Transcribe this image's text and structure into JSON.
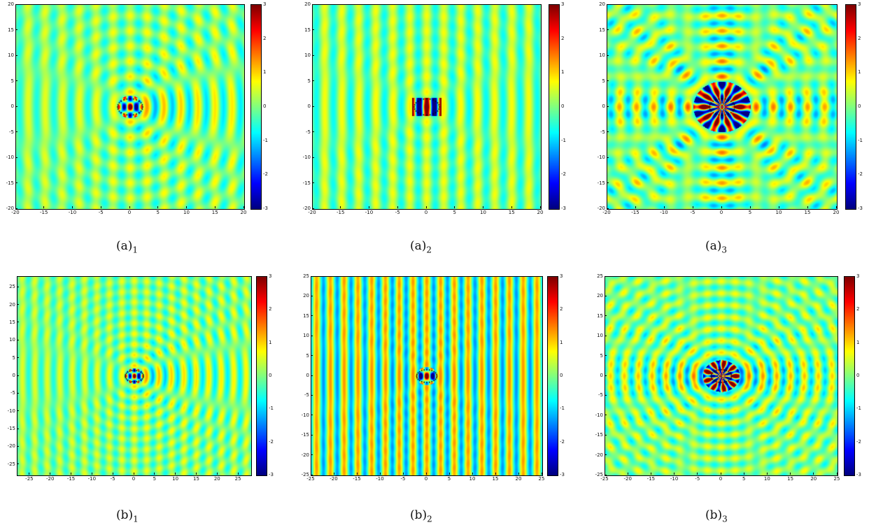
{
  "chart_data": [
    {
      "id": "a1",
      "type": "heatmap",
      "caption_main": "(a)",
      "caption_sub": "1",
      "xlim": [
        -20,
        20
      ],
      "ylim": [
        -20,
        20
      ],
      "x_ticks": [
        -20,
        -15,
        -10,
        -5,
        0,
        5,
        10,
        15,
        20
      ],
      "y_ticks": [
        -20,
        -15,
        -10,
        -5,
        0,
        5,
        10,
        15,
        20
      ],
      "clim": [
        -3,
        3
      ],
      "colorbar_ticks": [
        -3,
        -2,
        -1,
        0,
        1,
        2,
        3
      ],
      "colormap": "jet",
      "pattern": "forward"
    },
    {
      "id": "a2",
      "type": "heatmap",
      "caption_main": "(a)",
      "caption_sub": "2",
      "xlim": [
        -20,
        20
      ],
      "ylim": [
        -20,
        20
      ],
      "x_ticks": [
        -20,
        -15,
        -10,
        -5,
        0,
        5,
        10,
        15,
        20
      ],
      "y_ticks": [
        -20,
        -15,
        -10,
        -5,
        0,
        5,
        10,
        15,
        20
      ],
      "clim": [
        -3,
        3
      ],
      "colorbar_ticks": [
        -3,
        -2,
        -1,
        0,
        1,
        2,
        3
      ],
      "colormap": "jet",
      "pattern": "plane"
    },
    {
      "id": "a3",
      "type": "heatmap",
      "caption_main": "(a)",
      "caption_sub": "3",
      "xlim": [
        -20,
        20
      ],
      "ylim": [
        -20,
        20
      ],
      "x_ticks": [
        -20,
        -15,
        -10,
        -5,
        0,
        5,
        10,
        15,
        20
      ],
      "y_ticks": [
        -20,
        -15,
        -10,
        -5,
        0,
        5,
        10,
        15,
        20
      ],
      "clim": [
        -3,
        3
      ],
      "colorbar_ticks": [
        -3,
        -2,
        -1,
        0,
        1,
        2,
        3
      ],
      "colormap": "jet",
      "pattern": "radial"
    },
    {
      "id": "b1",
      "type": "heatmap",
      "caption_main": "(b)",
      "caption_sub": "1",
      "xlim": [
        -28,
        28
      ],
      "ylim": [
        -28,
        28
      ],
      "x_ticks": [
        -25,
        -20,
        -15,
        -10,
        -5,
        0,
        5,
        10,
        15,
        20,
        25
      ],
      "y_ticks": [
        -25,
        -20,
        -15,
        -10,
        -5,
        0,
        5,
        10,
        15,
        20,
        25
      ],
      "clim": [
        -3,
        3
      ],
      "colorbar_ticks": [
        -3,
        -2,
        -1,
        0,
        1,
        2,
        3
      ],
      "colormap": "jet",
      "pattern": "forward"
    },
    {
      "id": "b2",
      "type": "heatmap",
      "caption_main": "(b)",
      "caption_sub": "2",
      "xlim": [
        -25,
        25
      ],
      "ylim": [
        -25,
        25
      ],
      "x_ticks": [
        -25,
        -20,
        -15,
        -10,
        -5,
        0,
        5,
        10,
        15,
        20,
        25
      ],
      "y_ticks": [
        -25,
        -20,
        -15,
        -10,
        -5,
        0,
        5,
        10,
        15,
        20,
        25
      ],
      "clim": [
        -3,
        3
      ],
      "colorbar_ticks": [
        -3,
        -2,
        -1,
        0,
        1,
        2,
        3
      ],
      "colormap": "jet",
      "pattern": "plane_strong"
    },
    {
      "id": "b3",
      "type": "heatmap",
      "caption_main": "(b)",
      "caption_sub": "3",
      "xlim": [
        -25,
        25
      ],
      "ylim": [
        -25,
        25
      ],
      "x_ticks": [
        -25,
        -20,
        -15,
        -10,
        -5,
        0,
        5,
        10,
        15,
        20,
        25
      ],
      "y_ticks": [
        -25,
        -20,
        -15,
        -10,
        -5,
        0,
        5,
        10,
        15,
        20,
        25
      ],
      "clim": [
        -3,
        3
      ],
      "colorbar_ticks": [
        -3,
        -2,
        -1,
        0,
        1,
        2,
        3
      ],
      "colormap": "jet",
      "pattern": "radial_h"
    }
  ]
}
